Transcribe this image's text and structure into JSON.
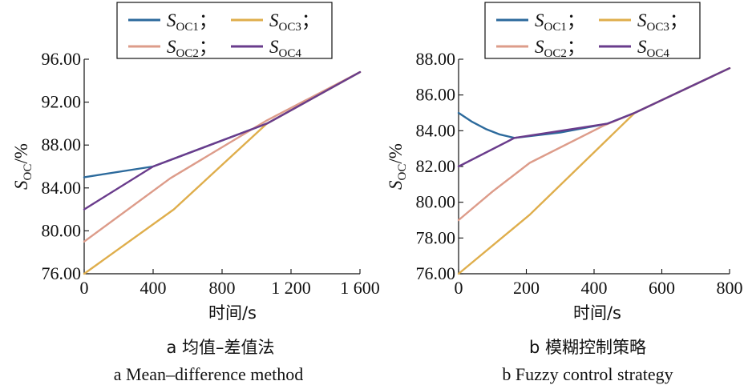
{
  "colors": {
    "S_OC1": "#2c6a9c",
    "S_OC2": "#dd9c8a",
    "S_OC3": "#dfae4c",
    "S_OC4": "#6a3c8c"
  },
  "chart_data": [
    {
      "type": "line",
      "panel_label": "a",
      "title_cn": "均值–差值法",
      "title_en": "Mean–difference method",
      "caption_cn": "a  均值–差值法",
      "caption_en": "a  Mean–difference method",
      "xlabel": "时间/s",
      "ylabel_main": "S",
      "ylabel_sub": "OC",
      "ylabel_suffix": "/%",
      "xlim": [
        0,
        1600
      ],
      "ylim": [
        76,
        96
      ],
      "xticks": [
        0,
        400,
        800,
        1200,
        1600
      ],
      "xtick_labels": [
        "0",
        "400",
        "800",
        "1 200",
        "1 600"
      ],
      "yticks": [
        76,
        80,
        84,
        88,
        92,
        96
      ],
      "ytick_labels": [
        "76.00",
        "80.00",
        "84.00",
        "88.00",
        "92.00",
        "96.00"
      ],
      "legend": [
        {
          "key": "S_OC1",
          "main": "S",
          "sub": "OC1",
          "sep": "；"
        },
        {
          "key": "S_OC3",
          "main": "S",
          "sub": "OC3",
          "sep": "；"
        },
        {
          "key": "S_OC2",
          "main": "S",
          "sub": "OC2",
          "sep": "；"
        },
        {
          "key": "S_OC4",
          "main": "S",
          "sub": "OC4",
          "sep": ""
        }
      ],
      "legend_position": "top-center",
      "series": [
        {
          "name": "S_OC1",
          "x": [
            0,
            400,
            1060,
            1600
          ],
          "y": [
            85.0,
            86.0,
            90.0,
            94.8
          ]
        },
        {
          "name": "S_OC2",
          "x": [
            0,
            500,
            1060,
            1600
          ],
          "y": [
            79.0,
            84.9,
            90.3,
            94.8
          ]
        },
        {
          "name": "S_OC3",
          "x": [
            0,
            520,
            1060,
            1600
          ],
          "y": [
            76.0,
            82.0,
            90.0,
            94.8
          ]
        },
        {
          "name": "S_OC4",
          "x": [
            0,
            400,
            1060,
            1600
          ],
          "y": [
            82.0,
            86.0,
            90.0,
            94.8
          ]
        }
      ]
    },
    {
      "type": "line",
      "panel_label": "b",
      "title_cn": "模糊控制策略",
      "title_en": "Fuzzy control strategy",
      "caption_cn": "b  模糊控制策略",
      "caption_en": "b  Fuzzy control strategy",
      "xlabel": "时间/s",
      "ylabel_main": "S",
      "ylabel_sub": "OC",
      "ylabel_suffix": "/%",
      "xlim": [
        0,
        800
      ],
      "ylim": [
        76,
        88
      ],
      "xticks": [
        0,
        200,
        400,
        600,
        800
      ],
      "xtick_labels": [
        "0",
        "200",
        "400",
        "600",
        "800"
      ],
      "yticks": [
        76,
        78,
        80,
        82,
        84,
        86,
        88
      ],
      "ytick_labels": [
        "76.00",
        "78.00",
        "80.00",
        "82.00",
        "84.00",
        "86.00",
        "88.00"
      ],
      "legend": [
        {
          "key": "S_OC1",
          "main": "S",
          "sub": "OC1",
          "sep": "；"
        },
        {
          "key": "S_OC3",
          "main": "S",
          "sub": "OC3",
          "sep": "；"
        },
        {
          "key": "S_OC2",
          "main": "S",
          "sub": "OC2",
          "sep": "；"
        },
        {
          "key": "S_OC4",
          "main": "S",
          "sub": "OC4",
          "sep": ""
        }
      ],
      "legend_position": "top-center",
      "series": [
        {
          "name": "S_OC1",
          "x": [
            0,
            40,
            80,
            120,
            165,
            300,
            440,
            520,
            800
          ],
          "y": [
            85.0,
            84.5,
            84.1,
            83.8,
            83.6,
            83.9,
            84.4,
            85.0,
            87.5
          ]
        },
        {
          "name": "S_OC2",
          "x": [
            0,
            100,
            210,
            430,
            520,
            800
          ],
          "y": [
            79.0,
            80.6,
            82.2,
            84.3,
            85.0,
            87.5
          ]
        },
        {
          "name": "S_OC3",
          "x": [
            0,
            210,
            520,
            800
          ],
          "y": [
            76.0,
            79.3,
            85.0,
            87.5
          ]
        },
        {
          "name": "S_OC4",
          "x": [
            0,
            165,
            440,
            520,
            800
          ],
          "y": [
            82.0,
            83.6,
            84.4,
            85.0,
            87.5
          ]
        }
      ]
    }
  ]
}
